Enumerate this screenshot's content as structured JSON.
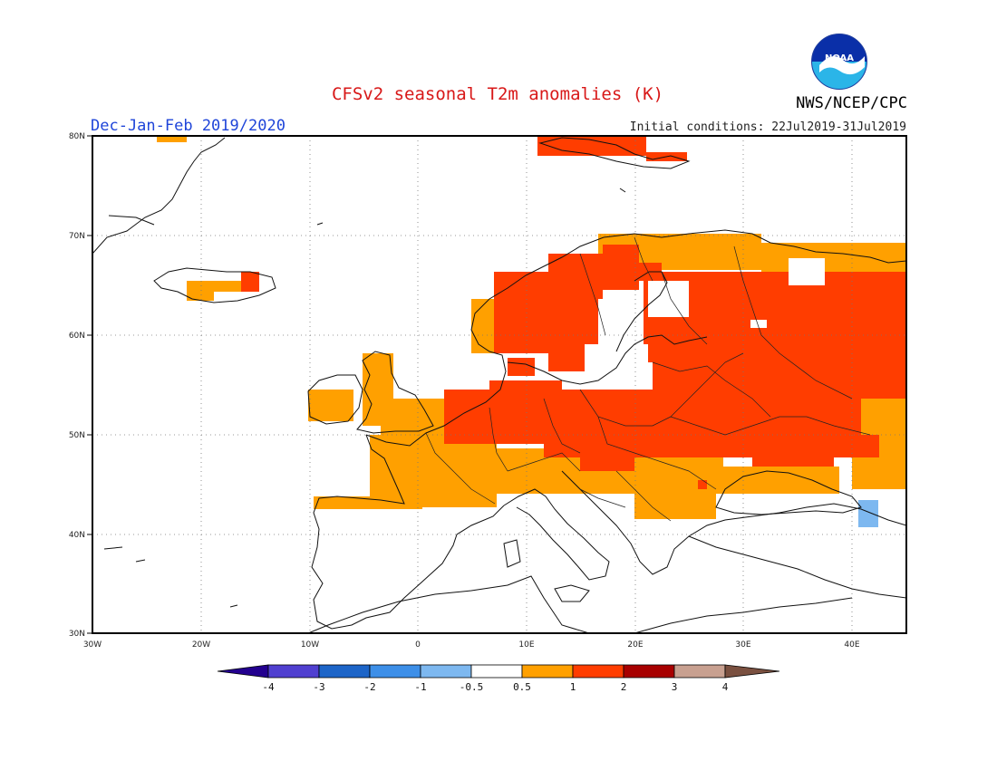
{
  "header": {
    "title": "CFSv2 seasonal T2m anomalies (K)",
    "season": "Dec-Jan-Feb 2019/2020",
    "initial_conditions": "Initial conditions: 22Jul2019-31Jul2019",
    "org": "NWS/NCEP/CPC",
    "logo_text": "NOAA"
  },
  "map": {
    "lon_range": [
      -30,
      45
    ],
    "lat_range": [
      30,
      80
    ],
    "lon_ticks": [
      "30W",
      "20W",
      "10W",
      "0",
      "10E",
      "20E",
      "30E",
      "40E"
    ],
    "lat_ticks": [
      "30N",
      "40N",
      "50N",
      "60N",
      "70N",
      "80N"
    ],
    "grid": "dotted"
  },
  "legend": {
    "tick_labels": [
      "-4",
      "-3",
      "-2",
      "-1",
      "-0.5",
      "0.5",
      "1",
      "2",
      "3",
      "4"
    ],
    "colors": [
      "#23008f",
      "#5040d0",
      "#1d65c8",
      "#3d8fe8",
      "#7db8f0",
      "#ffffff",
      "#ffa000",
      "#ff3d00",
      "#a80000",
      "#c8a090",
      "#7a5040"
    ]
  },
  "chart_data": {
    "type": "heatmap",
    "title": "CFSv2 seasonal T2m anomalies (K)",
    "units": "K",
    "lon_range": [
      -30,
      45
    ],
    "lat_range": [
      30,
      80
    ],
    "categories_bins": [
      "<-4",
      "-4..-3",
      "-3..-2",
      "-2..-1",
      "-1..-0.5",
      "-0.5..0.5",
      "0.5..1",
      "1..2",
      "2..3",
      "3..4",
      ">4"
    ],
    "regions": [
      {
        "name": "Iceland",
        "bin": "0.5..1",
        "approx_extent": {
          "lon": [
            -24,
            -13
          ],
          "lat": [
            63.5,
            66.5
          ]
        }
      },
      {
        "name": "British Isles",
        "bin": "0.5..1",
        "approx_extent": {
          "lon": [
            -10,
            2
          ],
          "lat": [
            50,
            59
          ]
        }
      },
      {
        "name": "France / Iberia north",
        "bin": "0.5..1",
        "approx_extent": {
          "lon": [
            -4,
            8
          ],
          "lat": [
            42,
            50
          ]
        }
      },
      {
        "name": "Central & Eastern Europe",
        "bin": "1..2",
        "approx_extent": {
          "lon": [
            5,
            45
          ],
          "lat": [
            46,
            58
          ]
        }
      },
      {
        "name": "Scandinavia",
        "bin": "1..2",
        "approx_extent": {
          "lon": [
            5,
            30
          ],
          "lat": [
            57,
            70
          ]
        }
      },
      {
        "name": "Northwest Russia",
        "bin": "1..2",
        "approx_extent": {
          "lon": [
            25,
            45
          ],
          "lat": [
            55,
            68
          ]
        }
      },
      {
        "name": "Svalbard",
        "bin": "1..2",
        "approx_extent": {
          "lon": [
            10,
            25
          ],
          "lat": [
            77,
            80
          ]
        }
      },
      {
        "name": "Balkans / Black Sea",
        "bin": "0.5..1",
        "approx_extent": {
          "lon": [
            12,
            30
          ],
          "lat": [
            42,
            47
          ]
        }
      },
      {
        "name": "Caucasus",
        "bin": "-1..-0.5",
        "approx_extent": {
          "lon": [
            40,
            42
          ],
          "lat": [
            40.5,
            42.5
          ]
        }
      }
    ]
  }
}
